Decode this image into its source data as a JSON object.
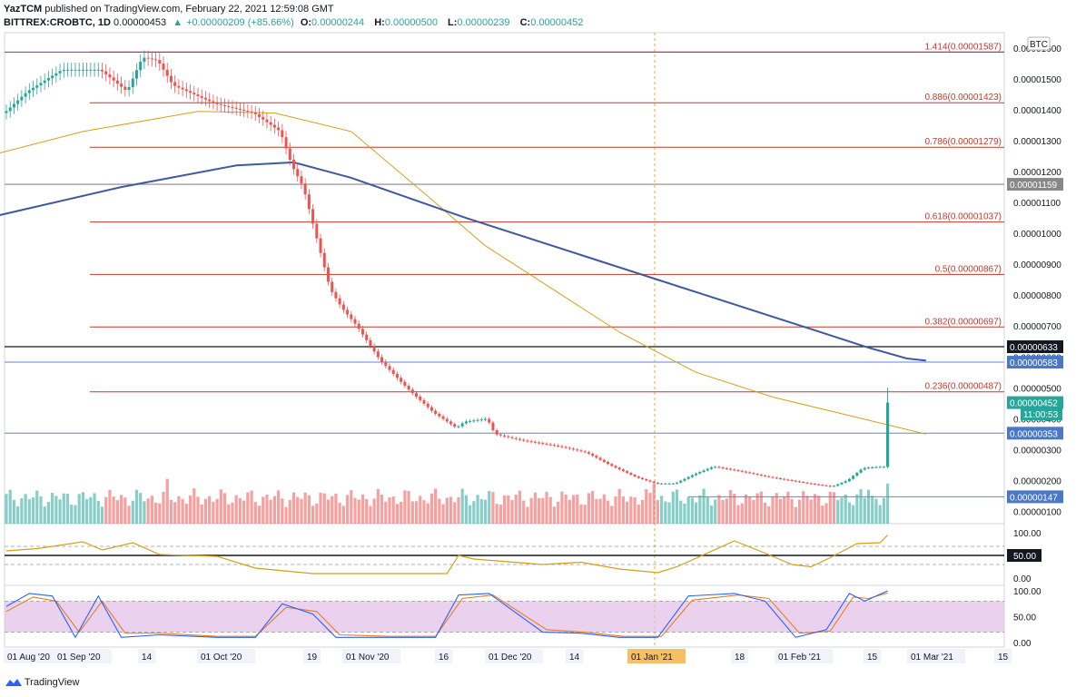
{
  "header": {
    "publisher": "YazTCM",
    "published_text": "published on TradingView.com, February 22, 2021 12:59:08 GMT",
    "symbol": "BITTREX:CROBTC, 1D",
    "last": "0.00000453",
    "change": "+0.00000209 (+85.66%)",
    "open_label": "O:",
    "open": "0.00000244",
    "high_label": "H:",
    "high": "0.00000500",
    "low_label": "L:",
    "low": "0.00000239",
    "close_label": "C:",
    "close": "0.00000452"
  },
  "footer": {
    "brand": "TradingView"
  },
  "colors": {
    "up": "#26a69a",
    "down": "#ef5350",
    "fib": "#c0392b",
    "ema200": "#3d5a9e",
    "ema100": "#d4a017",
    "rsi": "#d4a017",
    "stoch_k": "#2962ff",
    "stoch_d": "#e67e22",
    "stoch_band": "#e1bee7",
    "purple_line": "#9c27b0",
    "blue_line": "#5b8ad6"
  },
  "chart_data": [
    {
      "type": "candlestick",
      "currency_label": "BTC",
      "y_axis_ticks": [
        "0.00001600",
        "0.00001500",
        "0.00001400",
        "0.00001300",
        "0.00001200",
        "0.00001100",
        "0.00001000",
        "0.00000900",
        "0.00000800",
        "0.00000700",
        "0.00000600",
        "0.00000500",
        "0.00000400",
        "0.00000300",
        "0.00000200",
        "0.00000100"
      ],
      "x_axis_ticks": [
        "01 Aug '20",
        "01 Sep '20",
        "14",
        "01 Oct '20",
        "19",
        "01 Nov '20",
        "16",
        "01 Dec '20",
        "14",
        "01 Jan '21",
        "18",
        "01 Feb '21",
        "15",
        "01 Mar '21",
        "15"
      ],
      "fib_levels": [
        {
          "label": "1.414(0.00001587)",
          "value": 1.587e-05
        },
        {
          "label": "0.886(0.00001423)",
          "value": 1.423e-05
        },
        {
          "label": "0.786(0.00001279)",
          "value": 1.279e-05
        },
        {
          "label": "0.618(0.00001037)",
          "value": 1.037e-05
        },
        {
          "label": "0.5(0.00000867)",
          "value": 8.67e-06
        },
        {
          "label": "0.382(0.00000697)",
          "value": 6.97e-06
        },
        {
          "label": "0.236(0.00000487)",
          "value": 4.87e-06
        }
      ],
      "price_tags": [
        {
          "label": "0.00001159",
          "value": 1.159e-05,
          "style": "gray"
        },
        {
          "label": "0.00000633",
          "value": 6.33e-06,
          "style": "black"
        },
        {
          "label": "0.00000583",
          "value": 5.83e-06,
          "style": "blue"
        },
        {
          "label": "0.00000452",
          "value": 4.52e-06,
          "style": "green"
        },
        {
          "label": "11:00:53",
          "value": 4.15e-06,
          "style": "green"
        },
        {
          "label": "0.00000353",
          "value": 3.53e-06,
          "style": "blue"
        },
        {
          "label": "0.00000147",
          "value": 1.47e-06,
          "style": "blue"
        }
      ],
      "ema200": [
        [
          -5,
          1.05e-05
        ],
        [
          30,
          1.15e-05
        ],
        [
          60,
          1.22e-05
        ],
        [
          75,
          1.23e-05
        ],
        [
          90,
          1.18e-05
        ],
        [
          120,
          1.05e-05
        ],
        [
          150,
          9.3e-06
        ],
        [
          180,
          8.1e-06
        ],
        [
          210,
          6.9e-06
        ],
        [
          225,
          6.3e-06
        ],
        [
          235,
          5.95e-06
        ],
        [
          240,
          5.88e-06
        ]
      ],
      "ema100": [
        [
          -5,
          1.25e-05
        ],
        [
          20,
          1.33e-05
        ],
        [
          50,
          1.395e-05
        ],
        [
          70,
          1.39e-05
        ],
        [
          90,
          1.33e-05
        ],
        [
          110,
          1.12e-05
        ],
        [
          125,
          9.6e-06
        ],
        [
          140,
          8.4e-06
        ],
        [
          160,
          6.8e-06
        ],
        [
          180,
          5.5e-06
        ],
        [
          200,
          4.7e-06
        ],
        [
          220,
          4.1e-06
        ],
        [
          230,
          3.8e-06
        ],
        [
          240,
          3.5e-06
        ]
      ],
      "candle_anchors": [
        [
          0,
          1.39e-05
        ],
        [
          6,
          1.46e-05
        ],
        [
          15,
          1.53e-05
        ],
        [
          25,
          1.53e-05
        ],
        [
          32,
          1.46e-05
        ],
        [
          36,
          1.57e-05
        ],
        [
          40,
          1.56e-05
        ],
        [
          44,
          1.48e-05
        ],
        [
          55,
          1.42e-05
        ],
        [
          65,
          1.39e-05
        ],
        [
          72,
          1.33e-05
        ],
        [
          75,
          1.22e-05
        ],
        [
          78,
          1.15e-05
        ],
        [
          82,
          9.6e-06
        ],
        [
          85,
          8.2e-06
        ],
        [
          88,
          7.6e-06
        ],
        [
          92,
          7e-06
        ],
        [
          98,
          5.9e-06
        ],
        [
          105,
          5e-06
        ],
        [
          112,
          4.2e-06
        ],
        [
          118,
          3.7e-06
        ],
        [
          120,
          3.9e-06
        ],
        [
          126,
          4e-06
        ],
        [
          128,
          3.5e-06
        ],
        [
          135,
          3.3e-06
        ],
        [
          145,
          3.1e-06
        ],
        [
          152,
          2.9e-06
        ],
        [
          158,
          2.5e-06
        ],
        [
          165,
          2.1e-06
        ],
        [
          170,
          1.9e-06
        ],
        [
          175,
          1.9e-06
        ],
        [
          180,
          2.2e-06
        ],
        [
          185,
          2.45e-06
        ],
        [
          192,
          2.3e-06
        ],
        [
          200,
          2.1e-06
        ],
        [
          210,
          1.9e-06
        ],
        [
          216,
          1.8e-06
        ],
        [
          220,
          2e-06
        ],
        [
          224,
          2.4e-06
        ],
        [
          228,
          2.44e-06
        ]
      ],
      "last_candle": {
        "open": 2.44e-06,
        "high": 5e-06,
        "low": 2.39e-06,
        "close": 4.52e-06
      },
      "volume_big": [
        [
          42,
          0.95
        ],
        [
          169,
          0.85
        ],
        [
          225,
          0.72
        ],
        [
          232,
          1.0
        ],
        [
          230,
          0.85
        ]
      ],
      "rsi": {
        "ticks": [
          "100.00",
          "50.00",
          "0.00"
        ],
        "level_label": "50.00",
        "values": [
          [
            0,
            60
          ],
          [
            8,
            65
          ],
          [
            20,
            80
          ],
          [
            25,
            62
          ],
          [
            33,
            78
          ],
          [
            40,
            52
          ],
          [
            55,
            48
          ],
          [
            65,
            22
          ],
          [
            80,
            10
          ],
          [
            100,
            10
          ],
          [
            115,
            10
          ],
          [
            118,
            50
          ],
          [
            122,
            42
          ],
          [
            140,
            30
          ],
          [
            150,
            35
          ],
          [
            160,
            20
          ],
          [
            170,
            12
          ],
          [
            175,
            25
          ],
          [
            190,
            82
          ],
          [
            198,
            55
          ],
          [
            205,
            30
          ],
          [
            210,
            25
          ],
          [
            215,
            45
          ],
          [
            222,
            76
          ],
          [
            228,
            78
          ],
          [
            230,
            95
          ]
        ]
      },
      "stoch": {
        "ticks": [
          "100.00",
          "50.00",
          "0.00"
        ],
        "k": [
          [
            0,
            70
          ],
          [
            6,
            95
          ],
          [
            12,
            90
          ],
          [
            18,
            10
          ],
          [
            24,
            90
          ],
          [
            30,
            10
          ],
          [
            40,
            15
          ],
          [
            55,
            10
          ],
          [
            65,
            10
          ],
          [
            72,
            75
          ],
          [
            80,
            55
          ],
          [
            86,
            10
          ],
          [
            100,
            10
          ],
          [
            112,
            10
          ],
          [
            118,
            92
          ],
          [
            126,
            95
          ],
          [
            140,
            20
          ],
          [
            150,
            18
          ],
          [
            160,
            10
          ],
          [
            170,
            10
          ],
          [
            178,
            90
          ],
          [
            190,
            95
          ],
          [
            198,
            80
          ],
          [
            206,
            10
          ],
          [
            214,
            25
          ],
          [
            220,
            95
          ],
          [
            224,
            80
          ],
          [
            230,
            100
          ]
        ],
        "d": [
          [
            0,
            60
          ],
          [
            7,
            88
          ],
          [
            13,
            80
          ],
          [
            19,
            20
          ],
          [
            25,
            80
          ],
          [
            31,
            18
          ],
          [
            40,
            18
          ],
          [
            55,
            12
          ],
          [
            65,
            12
          ],
          [
            73,
            68
          ],
          [
            81,
            60
          ],
          [
            87,
            15
          ],
          [
            100,
            12
          ],
          [
            112,
            12
          ],
          [
            119,
            85
          ],
          [
            127,
            92
          ],
          [
            141,
            25
          ],
          [
            151,
            20
          ],
          [
            161,
            12
          ],
          [
            171,
            12
          ],
          [
            179,
            82
          ],
          [
            191,
            92
          ],
          [
            199,
            85
          ],
          [
            207,
            18
          ],
          [
            215,
            22
          ],
          [
            221,
            88
          ],
          [
            225,
            85
          ],
          [
            230,
            96
          ]
        ]
      }
    }
  ]
}
